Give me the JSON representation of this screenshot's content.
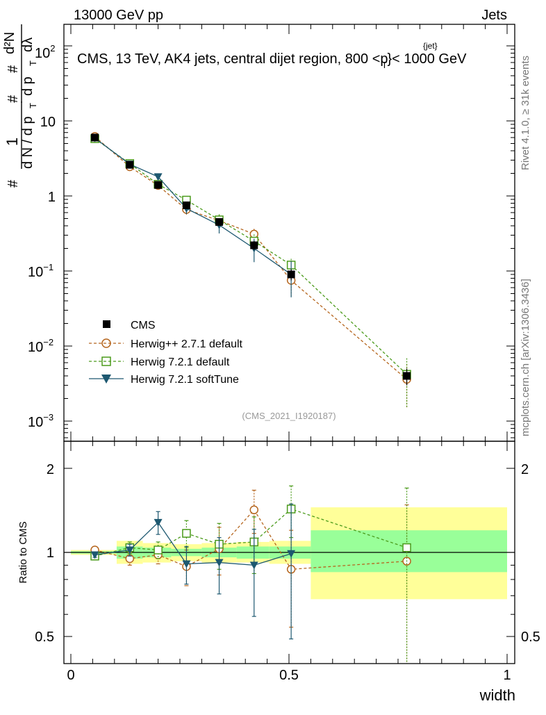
{
  "header": {
    "left": "13000 GeV pp",
    "right": "Jets",
    "title_main": "CMS, 13 TeV, AK4 jets, central dijet region, 800 <p",
    "title_sup": "{jet}",
    "title_sub": "T",
    "title_end": "}< 1000 GeV"
  },
  "side": {
    "rivet": "Rivet 4.1.0, ≥ 31k events",
    "mcplots": "mcplots.cern.ch [arXiv:1306.3436]"
  },
  "chart_data": {
    "type": "line",
    "analysis_id": "(CMS_2021_I1920187)",
    "xlabel": "width",
    "ylabel_upper": "1/(dN/dp_T) · d²N/(dp_T dλ)",
    "ylabel_lower": "Ratio to CMS",
    "xlim": [
      0,
      1
    ],
    "ylim_upper": [
      0.0005,
      200
    ],
    "ylim_lower": [
      0.4,
      2.4
    ],
    "ticks_x": [
      "0",
      "0.5",
      "1"
    ],
    "ticks_y_upper": {
      "e2": {
        "base": "10",
        "exp": "2"
      },
      "e1": "10",
      "e0": "1",
      "em1": {
        "base": "10",
        "exp": "−1"
      },
      "em2": {
        "base": "10",
        "exp": "−2"
      },
      "em3": {
        "base": "10",
        "exp": "−3"
      }
    },
    "ticks_y_lower": [
      "2",
      "1",
      "0.5"
    ],
    "data": {
      "name": "CMS",
      "x": [
        0.055,
        0.135,
        0.2,
        0.265,
        0.34,
        0.42,
        0.505,
        0.77
      ],
      "y": [
        6.0,
        2.6,
        1.4,
        0.75,
        0.45,
        0.22,
        0.09,
        0.004
      ],
      "yerr": [
        0.25,
        0.1,
        0.06,
        0.05,
        0.05,
        0.03,
        0.015,
        0.001
      ]
    },
    "bands": [
      {
        "x0": 0.0,
        "x1": 0.105,
        "yellow": [
          0.98,
          1.02
        ],
        "green": [
          0.99,
          1.01
        ]
      },
      {
        "x0": 0.105,
        "x1": 0.165,
        "yellow": [
          0.91,
          1.1
        ],
        "green": [
          0.95,
          1.05
        ]
      },
      {
        "x0": 0.165,
        "x1": 0.23,
        "yellow": [
          0.92,
          1.08
        ],
        "green": [
          0.96,
          1.04
        ]
      },
      {
        "x0": 0.23,
        "x1": 0.3,
        "yellow": [
          0.93,
          1.07
        ],
        "green": [
          0.97,
          1.03
        ]
      },
      {
        "x0": 0.3,
        "x1": 0.38,
        "yellow": [
          0.92,
          1.08
        ],
        "green": [
          0.96,
          1.04
        ]
      },
      {
        "x0": 0.38,
        "x1": 0.455,
        "yellow": [
          0.92,
          1.09
        ],
        "green": [
          0.95,
          1.05
        ]
      },
      {
        "x0": 0.455,
        "x1": 0.55,
        "yellow": [
          0.91,
          1.1
        ],
        "green": [
          0.95,
          1.05
        ]
      },
      {
        "x0": 0.55,
        "x1": 1.0,
        "yellow": [
          0.68,
          1.45
        ],
        "green": [
          0.85,
          1.2
        ]
      }
    ],
    "series": [
      {
        "name": "Herwig++ 2.7.1 default",
        "color": "#b5651d",
        "marker": "circle",
        "dash": "dashed",
        "x": [
          0.055,
          0.135,
          0.2,
          0.265,
          0.34,
          0.42,
          0.505,
          0.77
        ],
        "y": [
          6.2,
          2.45,
          1.38,
          0.66,
          0.47,
          0.31,
          0.075,
          0.0036
        ],
        "ratio": [
          1.02,
          0.95,
          0.98,
          0.89,
          1.03,
          1.42,
          0.87,
          0.93
        ],
        "ratio_err": [
          0.02,
          0.05,
          0.07,
          0.13,
          0.2,
          0.25,
          0.33,
          0.55
        ]
      },
      {
        "name": "Herwig 7.2.1 default",
        "color": "#4a9a1a",
        "marker": "square",
        "dash": "dashed",
        "x": [
          0.055,
          0.135,
          0.2,
          0.265,
          0.34,
          0.42,
          0.505,
          0.77
        ],
        "y": [
          5.8,
          2.7,
          1.43,
          0.88,
          0.48,
          0.25,
          0.12,
          0.0042
        ],
        "ratio": [
          0.97,
          1.04,
          1.02,
          1.17,
          1.07,
          1.09,
          1.43,
          1.04
        ],
        "ratio_err": [
          0.02,
          0.05,
          0.07,
          0.13,
          0.2,
          0.25,
          0.3,
          0.66
        ]
      },
      {
        "name": "Herwig 7.2.1 softTune",
        "color": "#1d5870",
        "marker": "triangle-down",
        "dash": "solid",
        "x": [
          0.055,
          0.135,
          0.2,
          0.265,
          0.34,
          0.42,
          0.505
        ],
        "y": [
          5.9,
          2.65,
          1.8,
          0.68,
          0.41,
          0.2,
          0.09
        ],
        "ratio": [
          0.98,
          1.02,
          1.28,
          0.91,
          0.92,
          0.9,
          0.99
        ],
        "ratio_err": [
          0.02,
          0.05,
          0.12,
          0.14,
          0.21,
          0.31,
          0.5
        ]
      }
    ]
  }
}
